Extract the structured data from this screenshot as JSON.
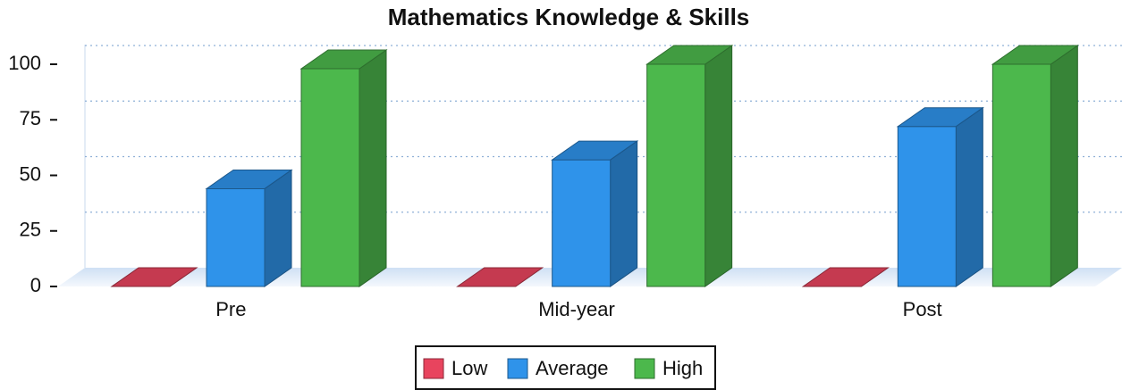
{
  "chart_data": {
    "type": "bar3d",
    "title": "Mathematics Knowledge & Skills",
    "categories": [
      "Pre",
      "Mid-year",
      "Post"
    ],
    "series": [
      {
        "name": "Low",
        "color": "#e8445e",
        "values": [
          0,
          0,
          0
        ]
      },
      {
        "name": "Average",
        "color": "#2f93ea",
        "values": [
          44,
          57,
          72
        ]
      },
      {
        "name": "High",
        "color": "#4cb84c",
        "values": [
          98,
          100,
          100
        ]
      }
    ],
    "ylim": [
      0,
      100
    ],
    "yticks": [
      0,
      25,
      50,
      75,
      100
    ],
    "grid": true,
    "legend": "bottom"
  }
}
